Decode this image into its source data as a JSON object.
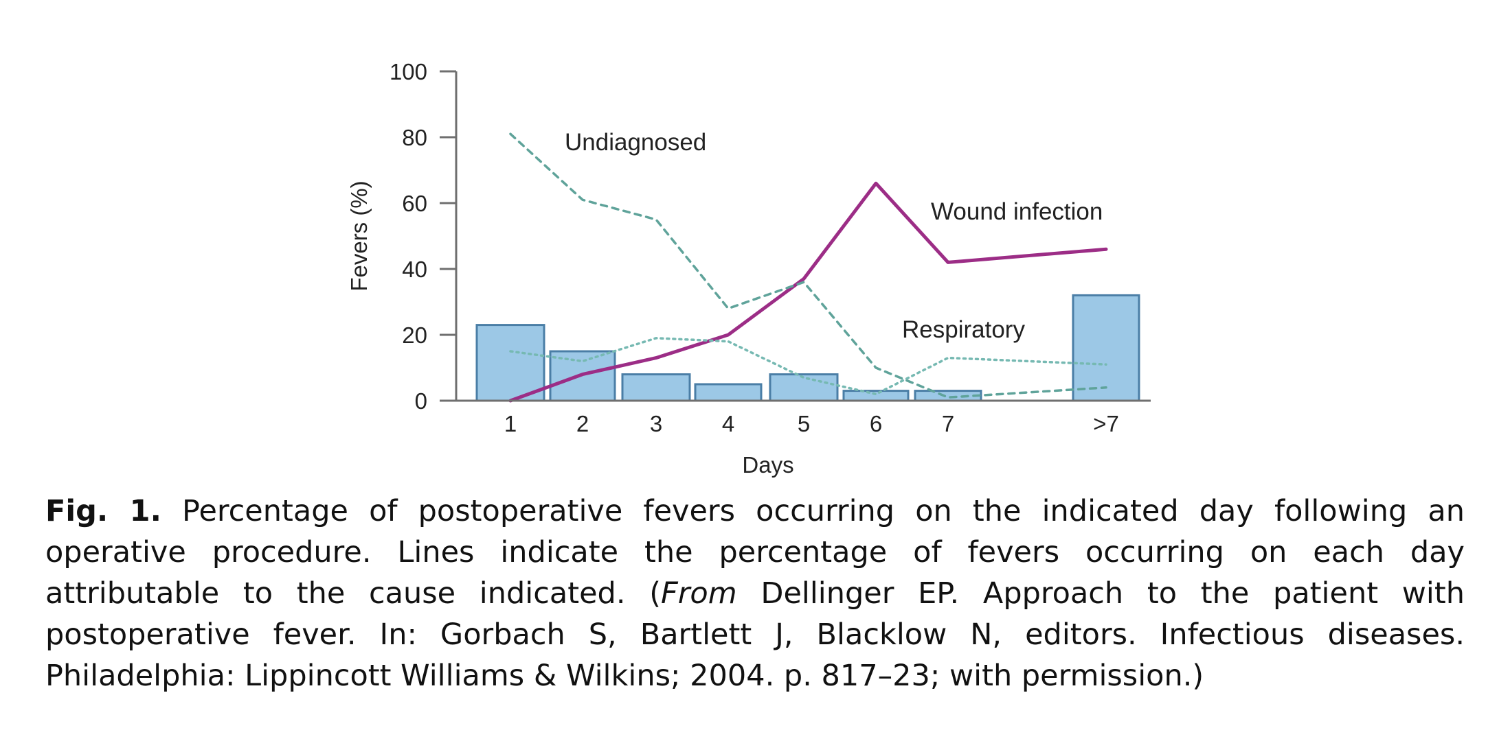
{
  "chart_data": {
    "type": "bar",
    "xlabel": "Days",
    "ylabel": "Fevers (%)",
    "ylim": [
      0,
      100
    ],
    "yticks": [
      "0",
      "20",
      "40",
      "60",
      "80",
      "100"
    ],
    "categories": [
      "1",
      "2",
      "3",
      "4",
      "5",
      "6",
      "7",
      ">7"
    ],
    "bars": {
      "values": [
        23,
        15,
        8,
        5,
        8,
        3,
        3,
        32
      ],
      "color": "#9cc8e6",
      "stroke": "#4a7ea6"
    },
    "series": [
      {
        "name": "Wound infection",
        "style": "solid",
        "color": "#9c2d86",
        "values": [
          0,
          8,
          13,
          20,
          37,
          66,
          42,
          46
        ]
      },
      {
        "name": "Undiagnosed",
        "style": "dashed",
        "color": "#5fa39a",
        "values": [
          81,
          61,
          55,
          28,
          36,
          10,
          1,
          4
        ]
      },
      {
        "name": "Respiratory",
        "style": "dotted",
        "color": "#76b9b2",
        "values": [
          15,
          12,
          19,
          18,
          7,
          2,
          13,
          11
        ]
      }
    ],
    "grid": false,
    "legend": "inline labels"
  },
  "caption": {
    "label": "Fig. 1.",
    "text_1": " Percentage of postoperative fevers occurring on the indicated day following an operative procedure. Lines indicate the percentage of fevers occurring on each day attributable to the cause indicated. (",
    "emph": "From",
    "text_2": " Dellinger EP. Approach to the patient with postoperative fever. In: Gorbach S, Bartlett J, Blacklow N, editors. Infectious diseases. Philadelphia: Lippincott Williams & Wilkins; 2004. p. 817–23; with permission.)"
  }
}
